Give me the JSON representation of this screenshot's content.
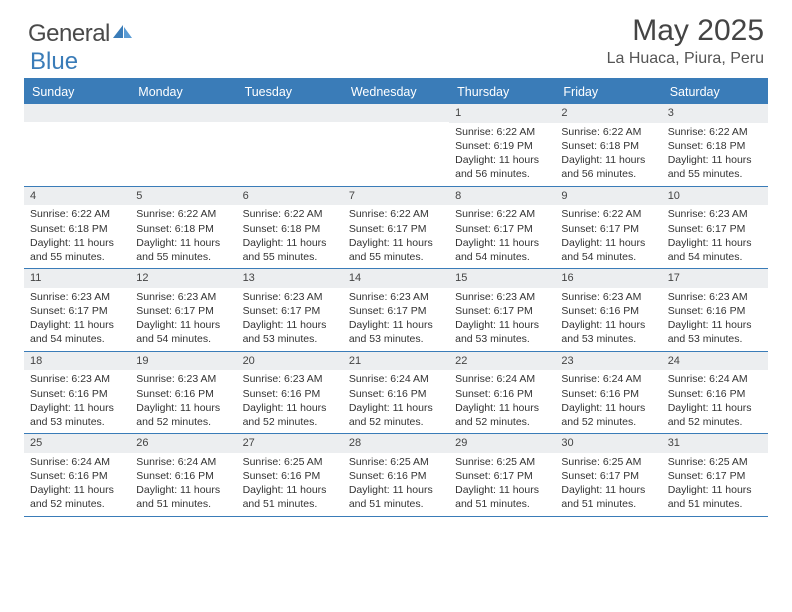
{
  "logo": {
    "text1": "General",
    "text2": "Blue",
    "icon_color": "#3a7cb8"
  },
  "title": "May 2025",
  "location": "La Huaca, Piura, Peru",
  "colors": {
    "header_bg": "#3a7cb8",
    "header_text": "#ffffff",
    "daynum_bg": "#eceef0",
    "border": "#3a7cb8",
    "body_text": "#333333"
  },
  "day_headers": [
    "Sunday",
    "Monday",
    "Tuesday",
    "Wednesday",
    "Thursday",
    "Friday",
    "Saturday"
  ],
  "weeks": [
    [
      {
        "num": "",
        "sunrise": "",
        "sunset": "",
        "daylight": ""
      },
      {
        "num": "",
        "sunrise": "",
        "sunset": "",
        "daylight": ""
      },
      {
        "num": "",
        "sunrise": "",
        "sunset": "",
        "daylight": ""
      },
      {
        "num": "",
        "sunrise": "",
        "sunset": "",
        "daylight": ""
      },
      {
        "num": "1",
        "sunrise": "Sunrise: 6:22 AM",
        "sunset": "Sunset: 6:19 PM",
        "daylight": "Daylight: 11 hours and 56 minutes."
      },
      {
        "num": "2",
        "sunrise": "Sunrise: 6:22 AM",
        "sunset": "Sunset: 6:18 PM",
        "daylight": "Daylight: 11 hours and 56 minutes."
      },
      {
        "num": "3",
        "sunrise": "Sunrise: 6:22 AM",
        "sunset": "Sunset: 6:18 PM",
        "daylight": "Daylight: 11 hours and 55 minutes."
      }
    ],
    [
      {
        "num": "4",
        "sunrise": "Sunrise: 6:22 AM",
        "sunset": "Sunset: 6:18 PM",
        "daylight": "Daylight: 11 hours and 55 minutes."
      },
      {
        "num": "5",
        "sunrise": "Sunrise: 6:22 AM",
        "sunset": "Sunset: 6:18 PM",
        "daylight": "Daylight: 11 hours and 55 minutes."
      },
      {
        "num": "6",
        "sunrise": "Sunrise: 6:22 AM",
        "sunset": "Sunset: 6:18 PM",
        "daylight": "Daylight: 11 hours and 55 minutes."
      },
      {
        "num": "7",
        "sunrise": "Sunrise: 6:22 AM",
        "sunset": "Sunset: 6:17 PM",
        "daylight": "Daylight: 11 hours and 55 minutes."
      },
      {
        "num": "8",
        "sunrise": "Sunrise: 6:22 AM",
        "sunset": "Sunset: 6:17 PM",
        "daylight": "Daylight: 11 hours and 54 minutes."
      },
      {
        "num": "9",
        "sunrise": "Sunrise: 6:22 AM",
        "sunset": "Sunset: 6:17 PM",
        "daylight": "Daylight: 11 hours and 54 minutes."
      },
      {
        "num": "10",
        "sunrise": "Sunrise: 6:23 AM",
        "sunset": "Sunset: 6:17 PM",
        "daylight": "Daylight: 11 hours and 54 minutes."
      }
    ],
    [
      {
        "num": "11",
        "sunrise": "Sunrise: 6:23 AM",
        "sunset": "Sunset: 6:17 PM",
        "daylight": "Daylight: 11 hours and 54 minutes."
      },
      {
        "num": "12",
        "sunrise": "Sunrise: 6:23 AM",
        "sunset": "Sunset: 6:17 PM",
        "daylight": "Daylight: 11 hours and 54 minutes."
      },
      {
        "num": "13",
        "sunrise": "Sunrise: 6:23 AM",
        "sunset": "Sunset: 6:17 PM",
        "daylight": "Daylight: 11 hours and 53 minutes."
      },
      {
        "num": "14",
        "sunrise": "Sunrise: 6:23 AM",
        "sunset": "Sunset: 6:17 PM",
        "daylight": "Daylight: 11 hours and 53 minutes."
      },
      {
        "num": "15",
        "sunrise": "Sunrise: 6:23 AM",
        "sunset": "Sunset: 6:17 PM",
        "daylight": "Daylight: 11 hours and 53 minutes."
      },
      {
        "num": "16",
        "sunrise": "Sunrise: 6:23 AM",
        "sunset": "Sunset: 6:16 PM",
        "daylight": "Daylight: 11 hours and 53 minutes."
      },
      {
        "num": "17",
        "sunrise": "Sunrise: 6:23 AM",
        "sunset": "Sunset: 6:16 PM",
        "daylight": "Daylight: 11 hours and 53 minutes."
      }
    ],
    [
      {
        "num": "18",
        "sunrise": "Sunrise: 6:23 AM",
        "sunset": "Sunset: 6:16 PM",
        "daylight": "Daylight: 11 hours and 53 minutes."
      },
      {
        "num": "19",
        "sunrise": "Sunrise: 6:23 AM",
        "sunset": "Sunset: 6:16 PM",
        "daylight": "Daylight: 11 hours and 52 minutes."
      },
      {
        "num": "20",
        "sunrise": "Sunrise: 6:23 AM",
        "sunset": "Sunset: 6:16 PM",
        "daylight": "Daylight: 11 hours and 52 minutes."
      },
      {
        "num": "21",
        "sunrise": "Sunrise: 6:24 AM",
        "sunset": "Sunset: 6:16 PM",
        "daylight": "Daylight: 11 hours and 52 minutes."
      },
      {
        "num": "22",
        "sunrise": "Sunrise: 6:24 AM",
        "sunset": "Sunset: 6:16 PM",
        "daylight": "Daylight: 11 hours and 52 minutes."
      },
      {
        "num": "23",
        "sunrise": "Sunrise: 6:24 AM",
        "sunset": "Sunset: 6:16 PM",
        "daylight": "Daylight: 11 hours and 52 minutes."
      },
      {
        "num": "24",
        "sunrise": "Sunrise: 6:24 AM",
        "sunset": "Sunset: 6:16 PM",
        "daylight": "Daylight: 11 hours and 52 minutes."
      }
    ],
    [
      {
        "num": "25",
        "sunrise": "Sunrise: 6:24 AM",
        "sunset": "Sunset: 6:16 PM",
        "daylight": "Daylight: 11 hours and 52 minutes."
      },
      {
        "num": "26",
        "sunrise": "Sunrise: 6:24 AM",
        "sunset": "Sunset: 6:16 PM",
        "daylight": "Daylight: 11 hours and 51 minutes."
      },
      {
        "num": "27",
        "sunrise": "Sunrise: 6:25 AM",
        "sunset": "Sunset: 6:16 PM",
        "daylight": "Daylight: 11 hours and 51 minutes."
      },
      {
        "num": "28",
        "sunrise": "Sunrise: 6:25 AM",
        "sunset": "Sunset: 6:16 PM",
        "daylight": "Daylight: 11 hours and 51 minutes."
      },
      {
        "num": "29",
        "sunrise": "Sunrise: 6:25 AM",
        "sunset": "Sunset: 6:17 PM",
        "daylight": "Daylight: 11 hours and 51 minutes."
      },
      {
        "num": "30",
        "sunrise": "Sunrise: 6:25 AM",
        "sunset": "Sunset: 6:17 PM",
        "daylight": "Daylight: 11 hours and 51 minutes."
      },
      {
        "num": "31",
        "sunrise": "Sunrise: 6:25 AM",
        "sunset": "Sunset: 6:17 PM",
        "daylight": "Daylight: 11 hours and 51 minutes."
      }
    ]
  ]
}
